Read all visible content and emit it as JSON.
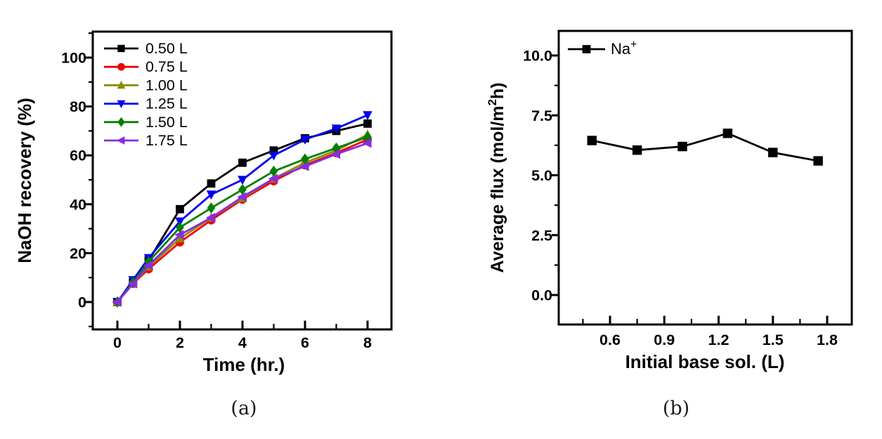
{
  "figure": {
    "background": "#ffffff",
    "captions": {
      "a": "(a)",
      "b": "(b)"
    }
  },
  "chart_data": [
    {
      "id": "a",
      "type": "line",
      "title": "",
      "xlabel": "Time (hr.)",
      "ylabel": "NaOH recovery (%)",
      "xlim": [
        -0.8,
        8.8
      ],
      "ylim": [
        -11,
        111
      ],
      "grid": false,
      "legend_position": "top-left-inside",
      "x_ticks": {
        "labels": [
          "0",
          "2",
          "4",
          "6",
          "8"
        ],
        "minor": [
          1,
          3,
          5,
          7
        ]
      },
      "y_ticks": {
        "labels": [
          "0",
          "20",
          "40",
          "60",
          "80",
          "100"
        ],
        "minor": [
          -10,
          10,
          30,
          50,
          70,
          90,
          110
        ]
      },
      "x": [
        0,
        0.5,
        1,
        2,
        3,
        4,
        5,
        6,
        7,
        8
      ],
      "series": [
        {
          "name": "0.50 L",
          "marker": "square",
          "color": "#000000",
          "values": [
            0,
            8,
            17,
            38,
            48.5,
            57,
            62,
            67,
            70,
            73
          ]
        },
        {
          "name": "0.75 L",
          "marker": "circle",
          "color": "#ee0000",
          "values": [
            0,
            7.5,
            13.5,
            24.5,
            33.5,
            42,
            49.5,
            56,
            61,
            66.5
          ]
        },
        {
          "name": "1.00 L",
          "marker": "triangle-up",
          "color": "#8b8b00",
          "values": [
            0,
            7.5,
            14.5,
            26,
            34.5,
            42.5,
            50.5,
            57,
            62,
            68.5
          ]
        },
        {
          "name": "1.25 L",
          "marker": "triangle-down",
          "color": "#0000ee",
          "values": [
            0,
            9,
            18,
            33,
            44,
            50,
            60,
            66.5,
            71,
            76.5
          ]
        },
        {
          "name": "1.50 L",
          "marker": "diamond",
          "color": "#007f00",
          "values": [
            0,
            8,
            16.5,
            30.5,
            38.5,
            46,
            53.5,
            58.5,
            63,
            67.5
          ]
        },
        {
          "name": "1.75 L",
          "marker": "triangle-left",
          "color": "#8a2be2",
          "values": [
            0,
            7.5,
            15,
            27.5,
            34.5,
            43,
            50.5,
            55.5,
            60.5,
            65
          ]
        }
      ]
    },
    {
      "id": "b",
      "type": "line",
      "title": "",
      "xlabel": "Initial base sol. (L)",
      "ylabel": "Average flux (mol/m2h)",
      "ylabel_parts": {
        "prefix": "Average flux (mol/m",
        "sup": "2",
        "suffix": "h)"
      },
      "xlim": [
        0.32,
        1.94
      ],
      "ylim": [
        -1.2,
        11
      ],
      "grid": false,
      "legend_position": "top-left-inside",
      "x_ticks": {
        "labels": [
          "0.6",
          "0.9",
          "1.2",
          "1.5",
          "1.8"
        ],
        "minor": [
          0.45,
          0.75,
          1.05,
          1.35,
          1.65,
          1.95
        ]
      },
      "y_ticks": {
        "labels": [
          "0.0",
          "2.5",
          "5.0",
          "7.5",
          "10.0"
        ],
        "minor": [
          1.25,
          3.75,
          6.25,
          8.75
        ]
      },
      "series": [
        {
          "name": "Na+",
          "name_parts": {
            "base": "Na",
            "sup": "+"
          },
          "marker": "square",
          "color": "#000000",
          "x": [
            0.5,
            0.75,
            1.0,
            1.25,
            1.5,
            1.75
          ],
          "values": [
            6.45,
            6.05,
            6.2,
            6.75,
            5.95,
            5.6
          ]
        }
      ]
    }
  ]
}
